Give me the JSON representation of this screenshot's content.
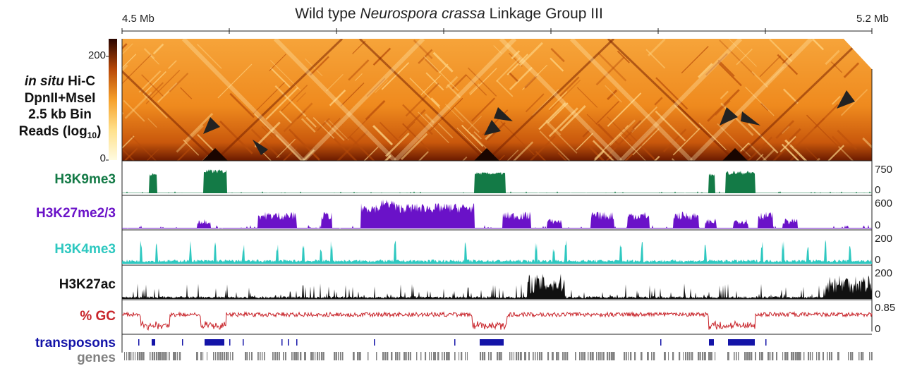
{
  "figure": {
    "title_prefix": "Wild type ",
    "title_species": "Neurospora crassa",
    "title_suffix": " Linkage Group III",
    "coord_start": "4.5 Mb",
    "coord_end": "5.2 Mb"
  },
  "hic": {
    "label_italic": "in situ",
    "label_rest_1": " Hi-C",
    "label_line_2": "DpnII+MseI",
    "label_line_3": "2.5 kb Bin",
    "label_line_4": "Reads (log",
    "label_subscript": "10",
    "label_close": ")",
    "colorbar_max": "200",
    "colorbar_min": "0",
    "colors": {
      "low": "#fff8c0",
      "mid": "#f39a1e",
      "high": "#4a0b00"
    }
  },
  "tracks": [
    {
      "key": "h3k9",
      "label": "H3K9me3",
      "color": "#137a46",
      "scale_max": "750",
      "scale_min": "0"
    },
    {
      "key": "h3k27me",
      "label": "H3K27me2/3",
      "color": "#6a12c8",
      "scale_max": "600",
      "scale_min": "0"
    },
    {
      "key": "h3k4",
      "label": "H3K4me3",
      "color": "#2ec8c0",
      "scale_max": "200",
      "scale_min": "0"
    },
    {
      "key": "h3k27ac",
      "label": "H3K27ac",
      "color": "#111111",
      "scale_max": "200",
      "scale_min": "0"
    },
    {
      "key": "gc",
      "label": "% GC",
      "color": "#c8242a",
      "scale_max": "0.85",
      "scale_min": "0"
    },
    {
      "key": "tn",
      "label": "transposons",
      "color": "#1414a8"
    },
    {
      "key": "genes",
      "label": "genes",
      "color": "#808080"
    }
  ]
}
